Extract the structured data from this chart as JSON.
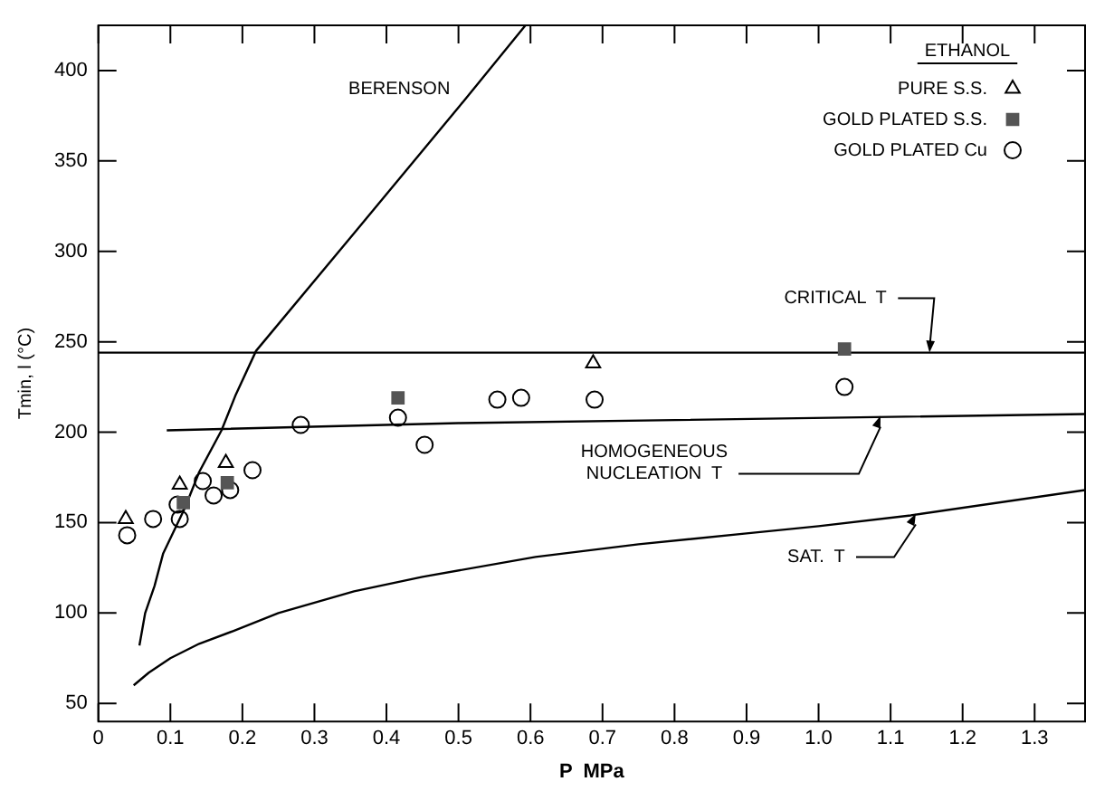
{
  "chart_data": {
    "type": "scatter",
    "xlabel": "P  MPa",
    "ylabel": "Tmin, l (°C)",
    "legend_title": "ETHANOL",
    "legend": "top right",
    "grid": false,
    "xlim": [
      0,
      1.37
    ],
    "xticks": [
      0,
      0.1,
      0.2,
      0.3,
      0.4,
      0.5,
      0.6,
      0.7,
      0.8,
      0.9,
      {
        "value": 1,
        "label": "1.0"
      },
      1.1,
      1.2,
      1.3
    ],
    "ylim": [
      40,
      425
    ],
    "yticks": [
      50,
      100,
      150,
      200,
      250,
      300,
      350,
      400
    ],
    "series": [
      {
        "name": "PURE S.S.",
        "color": "#000000",
        "marker": "triangle",
        "x": [
          0.038,
          0.113,
          0.177,
          0.687
        ],
        "values": [
          152,
          171,
          183,
          238
        ]
      },
      {
        "name": "GOLD PLATED S.S.",
        "color": "#555555",
        "marker": "square",
        "x": [
          0.118,
          0.179,
          0.416,
          1.036
        ],
        "values": [
          161,
          172,
          219,
          246
        ]
      },
      {
        "name": "GOLD PLATED Cu",
        "color": "#000000",
        "marker": "circle",
        "x": [
          0.04,
          0.076,
          0.11,
          0.113,
          0.145,
          0.16,
          0.183,
          0.214,
          0.281,
          0.416,
          0.453,
          0.554,
          0.587,
          0.689,
          1.036
        ],
        "values": [
          143,
          152,
          160,
          152,
          173,
          165,
          168,
          179,
          204,
          208,
          193,
          218,
          219,
          218,
          225
        ]
      },
      {
        "type": "line",
        "color": "#000000",
        "marker": "none",
        "x": [
          0.057,
          0.065,
          0.078,
          0.09,
          0.12,
          0.14,
          0.171,
          0.19,
          0.219,
          0.355,
          0.507,
          0.593
        ],
        "values": [
          82,
          100,
          115,
          133,
          158,
          178,
          201,
          220,
          245,
          310,
          383,
          425
        ]
      },
      {
        "type": "line",
        "color": "#000000",
        "marker": "none",
        "x": [
          0,
          1.37
        ],
        "values": [
          244,
          244
        ]
      },
      {
        "type": "line",
        "color": "#000000",
        "marker": "none",
        "x": [
          0.095,
          0.5,
          1.37
        ],
        "values": [
          201,
          205,
          210
        ]
      },
      {
        "type": "line",
        "color": "#000000",
        "marker": "none",
        "x": [
          0.049,
          0.07,
          0.1,
          0.14,
          0.187,
          0.25,
          0.355,
          0.45,
          0.607,
          0.75,
          0.9,
          1.0,
          1.128,
          1.37
        ],
        "values": [
          60,
          67,
          75,
          83,
          90,
          100,
          112,
          120,
          131,
          138,
          144,
          148,
          154,
          168
        ]
      }
    ],
    "annotations": [
      "BERENSON",
      {
        "text": "CRITICAL  T",
        "x": 1.154,
        "y": 244
      },
      {
        "text": "HOMOGENEOUS\nNUCLEATION  T",
        "x": 1.086,
        "y": 209
      },
      {
        "text": "SAT.  T",
        "x": 1.135,
        "y": 155
      }
    ]
  }
}
